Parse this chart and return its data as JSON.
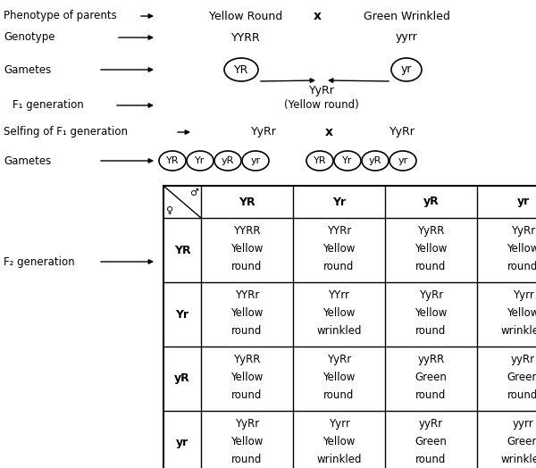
{
  "bg_color": "#ffffff",
  "fig_width": 6.0,
  "fig_height": 5.24,
  "labels": {
    "phenotype": "Phenotype of parents",
    "genotype": "Genotype",
    "gametes": "Gametes",
    "f1": "F₁ generation",
    "selfing": "Selfing of F₁ generation",
    "gametes2": "Gametes",
    "f2": "F₂ generation"
  },
  "parent_phenotype_left": "Yellow Round",
  "parent_phenotype_right": "Green Wrinkled",
  "parent_genotype_left": "YYRR",
  "parent_genotype_right": "yyrr",
  "gamete_left": "YR",
  "gamete_right": "yr",
  "f1_genotype": "YyRr",
  "f1_phenotype": "(Yellow round)",
  "selfing_left": "YyRr",
  "selfing_right": "YyRr",
  "cross_symbol": "x",
  "gametes_left": [
    "YR",
    "Yr",
    "yR",
    "yr"
  ],
  "gametes_right": [
    "YR",
    "Yr",
    "yR",
    "yr"
  ],
  "table_col_headers": [
    "YR",
    "Yr",
    "yR",
    "yr"
  ],
  "table_row_headers": [
    "YR",
    "Yr",
    "yR",
    "yr"
  ],
  "table_data": [
    [
      [
        "YYRR",
        "Yellow",
        "round"
      ],
      [
        "YYRr",
        "Yellow",
        "round"
      ],
      [
        "YyRR",
        "Yellow",
        "round"
      ],
      [
        "YyRr",
        "Yellow",
        "round"
      ]
    ],
    [
      [
        "YYRr",
        "Yellow",
        "round"
      ],
      [
        "YYrr",
        "Yellow",
        "wrinkled"
      ],
      [
        "YyRr",
        "Yellow",
        "round"
      ],
      [
        "Yyrr",
        "Yellow",
        "wrinkled"
      ]
    ],
    [
      [
        "YyRR",
        "Yellow",
        "round"
      ],
      [
        "YyRr",
        "Yellow",
        "round"
      ],
      [
        "yyRR",
        "Green",
        "round"
      ],
      [
        "yyRr",
        "Green",
        "round"
      ]
    ],
    [
      [
        "YyRr",
        "Yellow",
        "round"
      ],
      [
        "Yyrr",
        "Yellow",
        "wrinkled"
      ],
      [
        "yyRr",
        "Green",
        "round"
      ],
      [
        "yyrr",
        "Green",
        "wrinkled"
      ]
    ]
  ]
}
